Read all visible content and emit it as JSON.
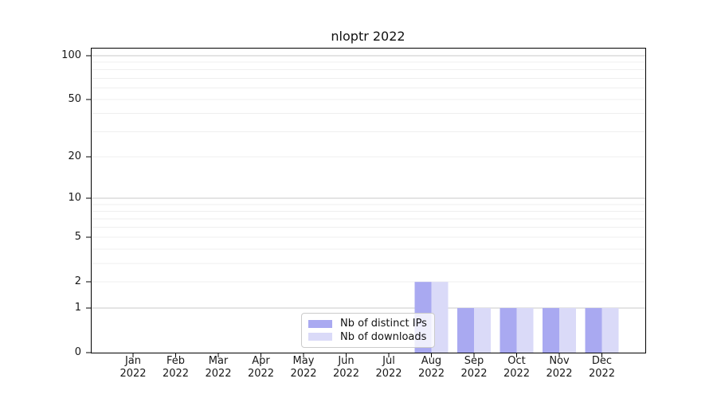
{
  "figure": {
    "background": "#ffffff"
  },
  "chart_data": {
    "type": "bar",
    "title": "nloptr 2022",
    "categories": [
      "Jan 2022",
      "Feb 2022",
      "Mar 2022",
      "Apr 2022",
      "May 2022",
      "Jun 2022",
      "Jul 2022",
      "Aug 2022",
      "Sep 2022",
      "Oct 2022",
      "Nov 2022",
      "Dec 2022"
    ],
    "series": [
      {
        "name": "Nb of distinct IPs",
        "color": "#a9a9f1",
        "values": [
          0,
          0,
          0,
          0,
          0,
          0,
          0,
          2,
          1,
          1,
          1,
          1
        ]
      },
      {
        "name": "Nb of downloads",
        "color": "#dadaf8",
        "values": [
          0,
          0,
          0,
          0,
          0,
          0,
          0,
          2,
          1,
          1,
          1,
          1
        ]
      }
    ],
    "xlabel": "",
    "ylabel": "",
    "yscale": "log1p",
    "ylim": [
      0,
      113
    ],
    "y_tick_values": [
      0,
      1,
      2,
      5,
      10,
      20,
      50,
      100
    ],
    "major_gridlines": [
      1,
      10,
      100
    ],
    "minor_gridlines": [
      2,
      3,
      4,
      5,
      6,
      7,
      8,
      9,
      20,
      30,
      40,
      50,
      60,
      70,
      80,
      90
    ],
    "grid": "on",
    "legend_position": "lower-center-inside",
    "colors": {
      "grid_major": "#c9c9c9",
      "grid_minor": "#efefef",
      "axis": "#000000",
      "text": "#181818"
    }
  }
}
